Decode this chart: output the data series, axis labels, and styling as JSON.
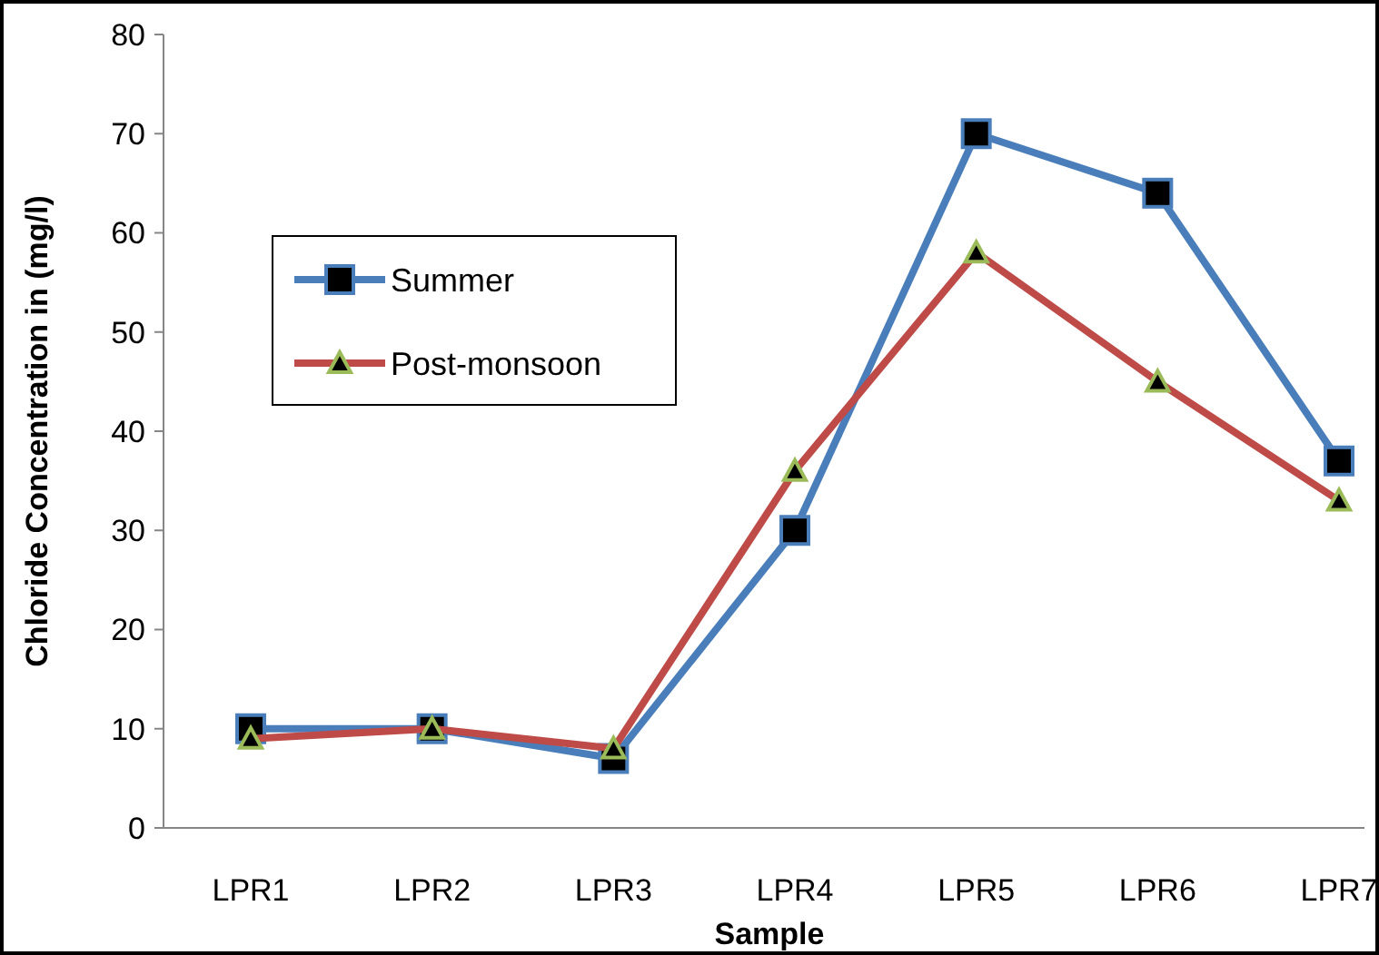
{
  "chart_data": {
    "type": "line",
    "xlabel": "Sample",
    "ylabel": "Chloride Concentration in (mg/l)",
    "categories": [
      "LPR1",
      "LPR2",
      "LPR3",
      "LPR4",
      "LPR5",
      "LPR6",
      "LPR7"
    ],
    "series": [
      {
        "name": "Summer",
        "color": "#4a7ebb",
        "marker": "square",
        "values": [
          10,
          10,
          7,
          30,
          70,
          64,
          37
        ]
      },
      {
        "name": "Post-monsoon",
        "color": "#be4b48",
        "marker": "triangle",
        "values": [
          9,
          10,
          8,
          36,
          58,
          45,
          33
        ]
      }
    ],
    "ylim": [
      0,
      80
    ],
    "yticks": [
      0,
      10,
      20,
      30,
      40,
      50,
      60,
      70,
      80
    ],
    "grid": false,
    "legend": "left",
    "line_style": "solid"
  }
}
